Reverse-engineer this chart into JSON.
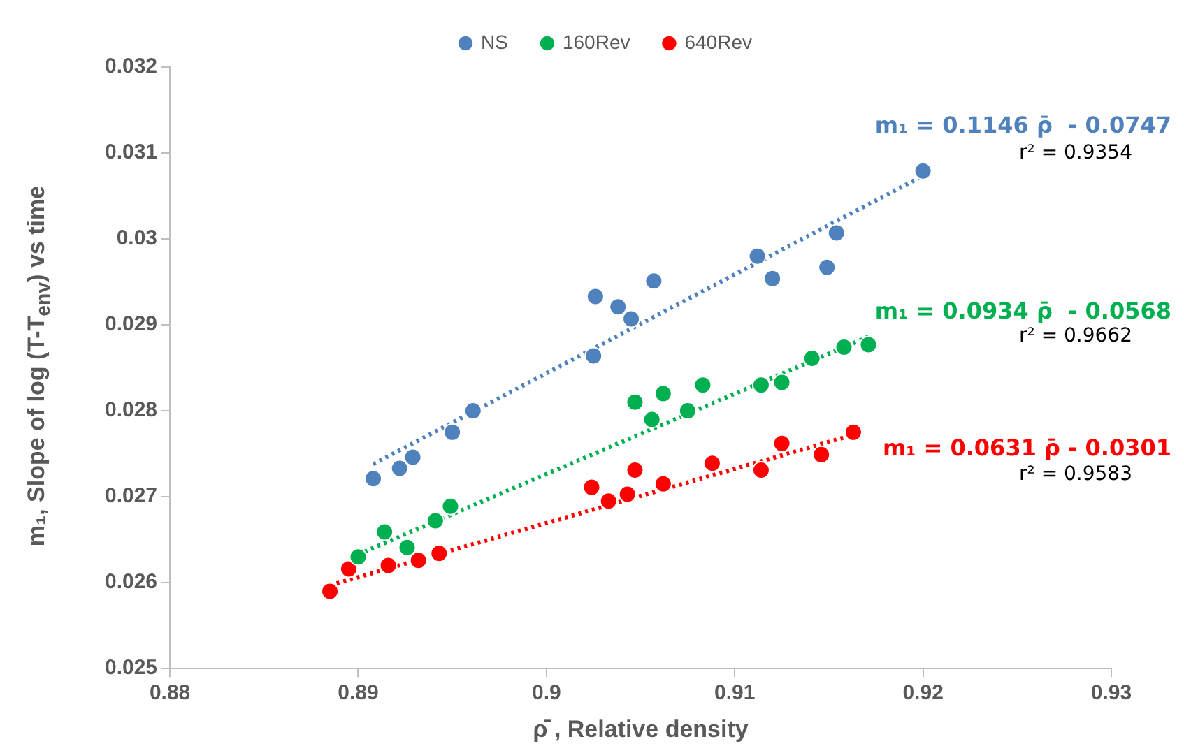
{
  "chart_data": {
    "type": "scatter",
    "xlabel": "ρ̄ , Relative density",
    "ylabel": "m₁, Slope of log (T-T$_{env}$) vs time",
    "xlim": [
      0.88,
      0.93
    ],
    "xticks": [
      0.88,
      0.89,
      0.9,
      0.91,
      0.92,
      0.93
    ],
    "ylim": [
      0.025,
      0.032
    ],
    "yticks": [
      0.025,
      0.026,
      0.027,
      0.028,
      0.029,
      0.03,
      0.031,
      0.032
    ],
    "grid": false,
    "legend": "top",
    "marker": "circle",
    "series": [
      {
        "name": "NS",
        "color": "#4f81bd",
        "x": [
          0.8908,
          0.8922,
          0.8929,
          0.895,
          0.8961,
          0.9025,
          0.9026,
          0.9038,
          0.9045,
          0.9057,
          0.9112,
          0.912,
          0.9149,
          0.9154,
          0.92
        ],
        "values": [
          0.02721,
          0.02733,
          0.02746,
          0.02775,
          0.028,
          0.02864,
          0.02933,
          0.02921,
          0.02907,
          0.02951,
          0.0298,
          0.02954,
          0.02967,
          0.03007,
          0.03079
        ]
      },
      {
        "name": "160Rev",
        "color": "#00b050",
        "x": [
          0.89,
          0.8914,
          0.8926,
          0.8941,
          0.8949,
          0.9047,
          0.9056,
          0.9062,
          0.9075,
          0.9083,
          0.9114,
          0.9125,
          0.9141,
          0.9158,
          0.9171
        ],
        "values": [
          0.0263,
          0.02659,
          0.02641,
          0.02672,
          0.02689,
          0.0281,
          0.0279,
          0.0282,
          0.028,
          0.0283,
          0.0283,
          0.02833,
          0.02861,
          0.02874,
          0.02877
        ]
      },
      {
        "name": "640Rev",
        "color": "#ff0000",
        "x": [
          0.8885,
          0.8895,
          0.8916,
          0.8932,
          0.8943,
          0.9024,
          0.9033,
          0.9043,
          0.9047,
          0.9062,
          0.9088,
          0.9114,
          0.9125,
          0.9146,
          0.9163
        ],
        "values": [
          0.0259,
          0.02616,
          0.0262,
          0.02626,
          0.02634,
          0.02711,
          0.02695,
          0.02703,
          0.02731,
          0.02715,
          0.02739,
          0.02731,
          0.02762,
          0.02749,
          0.02775
        ]
      },
      {
        "type": "line",
        "color": "#4f81bd",
        "line_style": "dotted",
        "marker": "none",
        "x": [
          0.8908,
          0.9203
        ],
        "values": [
          0.02738,
          0.03077
        ]
      },
      {
        "type": "line",
        "color": "#00b050",
        "line_style": "dotted",
        "marker": "none",
        "x": [
          0.89,
          0.9173
        ],
        "values": [
          0.02633,
          0.02888
        ]
      },
      {
        "type": "line",
        "color": "#ff0000",
        "line_style": "dotted",
        "marker": "none",
        "x": [
          0.8885,
          0.9166
        ],
        "values": [
          0.02597,
          0.02774
        ]
      }
    ],
    "annotations": [
      "m₁ = 0.1146 ρ̄  - 0.0747",
      "r² = 0.9354",
      "m₁ = 0.0934 ρ̄  - 0.0568",
      "r² = 0.9662",
      "m₁ = 0.0631 ρ̄ - 0.0301",
      "r² = 0.9583"
    ]
  }
}
